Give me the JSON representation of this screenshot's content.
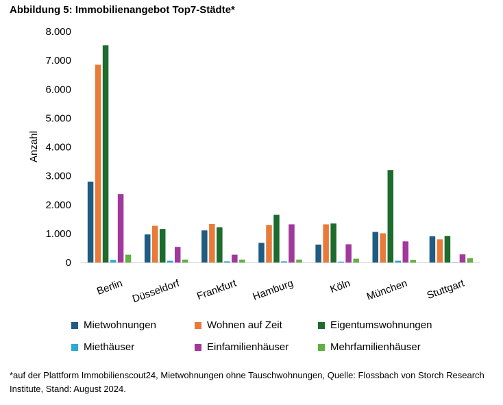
{
  "chart_data": {
    "type": "bar",
    "title": "Abbildung 5: Immobilienangebot Top7-Städte*",
    "ylabel": "Anzahl",
    "xlabel": "",
    "ylim": [
      0,
      8000
    ],
    "yticks": [
      "0",
      "1.000",
      "2.000",
      "3.000",
      "4.000",
      "5.000",
      "6.000",
      "7.000",
      "8.000"
    ],
    "categories": [
      "Berlin",
      "Düsseldorf",
      "Frankfurt",
      "Hamburg",
      "Köln",
      "München",
      "Stuttgart"
    ],
    "series": [
      {
        "name": "Mietwohnungen",
        "color": "#1f5b82",
        "values": [
          2800,
          970,
          1110,
          680,
          620,
          1060,
          910
        ]
      },
      {
        "name": "Wohnen auf Zeit",
        "color": "#e97a3a",
        "values": [
          6850,
          1270,
          1330,
          1300,
          1320,
          1010,
          800
        ]
      },
      {
        "name": "Eigentumswohnungen",
        "color": "#1d6b2e",
        "values": [
          7520,
          1160,
          1220,
          1650,
          1350,
          3200,
          920
        ]
      },
      {
        "name": "Miethäuser",
        "color": "#2ea8d8",
        "values": [
          90,
          60,
          40,
          40,
          30,
          60,
          10
        ]
      },
      {
        "name": "Einfamilienhäuser",
        "color": "#a1389c",
        "values": [
          2370,
          540,
          270,
          1320,
          630,
          730,
          280
        ]
      },
      {
        "name": "Mehrfamilienhäuser",
        "color": "#62b041",
        "values": [
          270,
          100,
          100,
          100,
          130,
          90,
          150
        ]
      }
    ],
    "grid": false,
    "legend_position": "bottom"
  },
  "footnote": "*auf der Plattform Immobilienscout24, Mietwohnungen ohne Tauschwohnungen, Quelle: Flossbach von Storch Research Institute, Stand: August 2024."
}
